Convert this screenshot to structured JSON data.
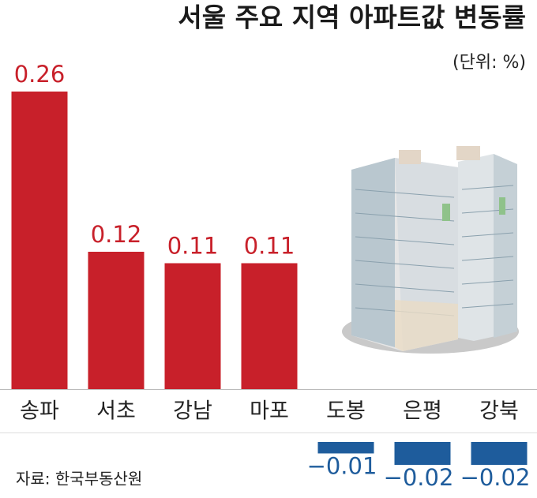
{
  "chart_data": {
    "type": "bar",
    "title": "서울 주요 지역 아파트값 변동률",
    "subtitle": "(단위: %)",
    "source": "자료: 한국부동산원",
    "categories": [
      "송파",
      "서초",
      "강남",
      "마포",
      "도봉",
      "은평",
      "강북"
    ],
    "values": [
      0.26,
      0.12,
      0.11,
      0.11,
      -0.01,
      -0.02,
      -0.02
    ],
    "value_labels": [
      "0.26",
      "0.12",
      "0.11",
      "0.11",
      "−0.01",
      "−0.02",
      "−0.02"
    ],
    "color": "#c8202a",
    "negative_color": "#1e5c9c"
  }
}
